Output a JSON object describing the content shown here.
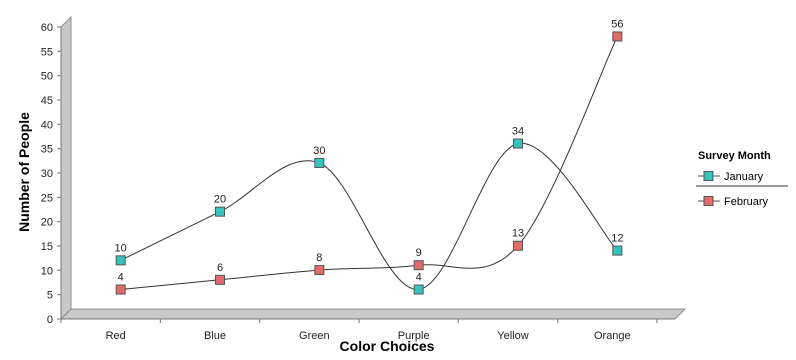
{
  "chart_data": {
    "type": "line",
    "title": "",
    "xlabel": "Color Choices",
    "ylabel": "Number of People",
    "categories": [
      "Red",
      "Blue",
      "Green",
      "Purple",
      "Yellow",
      "Orange"
    ],
    "ylim": [
      0,
      60
    ],
    "yticks": [
      0,
      5,
      10,
      15,
      20,
      25,
      30,
      35,
      40,
      45,
      50,
      55,
      60
    ],
    "grid": false,
    "smooth": true,
    "legend": {
      "title": "Survey Month",
      "placement": "right"
    },
    "series": [
      {
        "name": "January",
        "color": "#33c4bf",
        "values": [
          10,
          20,
          30,
          4,
          34,
          12
        ]
      },
      {
        "name": "February",
        "color": "#e56b6b",
        "values": [
          4,
          6,
          8,
          9,
          13,
          56
        ]
      }
    ]
  }
}
